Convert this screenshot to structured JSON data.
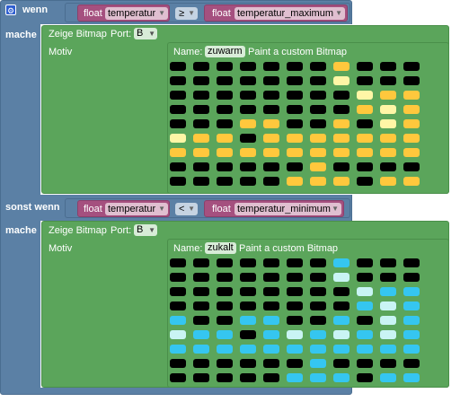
{
  "palette": {
    "0": "#000000",
    "1": "#ffc83d",
    "2": "#fff6a6",
    "3": "#35c6f0",
    "4": "#c9f4f4"
  },
  "if_block": {
    "keyword": "wenn",
    "gear": "⚙",
    "do_keyword": "mache",
    "else_if_keyword": "sonst wenn",
    "do_keyword_2": "mache"
  },
  "cond1": {
    "type_label": "float",
    "var": "temperatur",
    "op": "≥",
    "type_label2": "float",
    "var2": "temperatur_maximum"
  },
  "cond2": {
    "type_label": "float",
    "var": "temperatur",
    "op": "<",
    "type_label2": "float",
    "var2": "temperatur_minimum"
  },
  "bitmap1": {
    "title": "Zeige Bitmap",
    "port_label": "Port:",
    "port": "B",
    "motiv": "Motiv",
    "name_label": "Name:",
    "name": "zuwarm",
    "caption": "Paint a custom Bitmap",
    "grid": [
      "00000001000",
      "00000002000",
      "00000000211",
      "00000000121",
      "00011001021",
      "21101111111",
      "11111111111",
      "00000010000",
      "00000111011"
    ]
  },
  "bitmap2": {
    "title": "Zeige Bitmap",
    "port_label": "Port:",
    "port": "B",
    "motiv": "Motiv",
    "name_label": "Name:",
    "name": "zukalt",
    "caption": "Paint a custom Bitmap",
    "grid": [
      "00000003000",
      "00000004000",
      "00000000433",
      "00000000343",
      "30033003043",
      "43303434343",
      "33333333333",
      "00000030000",
      "00000333033"
    ]
  }
}
